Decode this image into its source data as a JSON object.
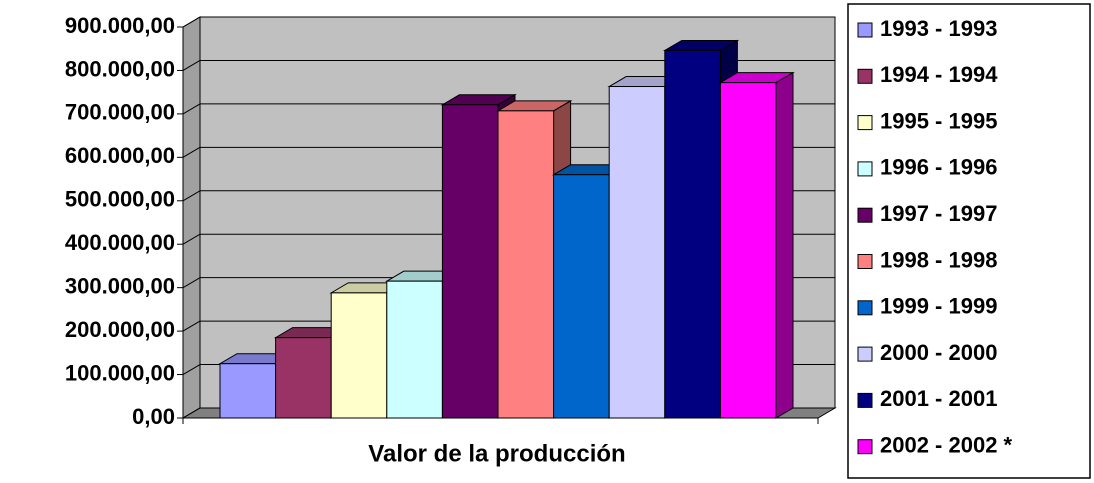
{
  "chart_data": {
    "type": "bar3d",
    "x_label": "Valor de la producción",
    "categories": [
      "Valor de la producción"
    ],
    "series": [
      {
        "name": "1993 - 1993",
        "color": "#9999ff",
        "values": [
          125000
        ]
      },
      {
        "name": "1994 - 1994",
        "color": "#993366",
        "values": [
          185000
        ]
      },
      {
        "name": "1995 - 1995",
        "color": "#ffffcc",
        "values": [
          288000
        ]
      },
      {
        "name": "1996 - 1996",
        "color": "#ccffff",
        "values": [
          315000
        ]
      },
      {
        "name": "1997 - 1997",
        "color": "#660066",
        "values": [
          721000
        ]
      },
      {
        "name": "1998 - 1998",
        "color": "#ff8080",
        "values": [
          707000
        ]
      },
      {
        "name": "1999 - 1999",
        "color": "#0066cc",
        "values": [
          560000
        ]
      },
      {
        "name": "2000 - 2000",
        "color": "#ccccff",
        "values": [
          763000
        ]
      },
      {
        "name": "2001 - 2001",
        "color": "#000080",
        "values": [
          846000
        ]
      },
      {
        "name": "2002 - 2002 *",
        "color": "#ff00ff",
        "values": [
          772000
        ]
      }
    ],
    "ylim": [
      0,
      900000
    ],
    "yticks": [
      {
        "value": 0,
        "label": "0,00"
      },
      {
        "value": 100000,
        "label": "100.000,00"
      },
      {
        "value": 200000,
        "label": "200.000,00"
      },
      {
        "value": 300000,
        "label": "300.000,00"
      },
      {
        "value": 400000,
        "label": "400.000,00"
      },
      {
        "value": 500000,
        "label": "500.000,00"
      },
      {
        "value": 600000,
        "label": "600.000,00"
      },
      {
        "value": 700000,
        "label": "700.000,00"
      },
      {
        "value": 800000,
        "label": "800.000,00"
      },
      {
        "value": 900000,
        "label": "900.000,00"
      }
    ],
    "grid": true,
    "legend": "right"
  }
}
